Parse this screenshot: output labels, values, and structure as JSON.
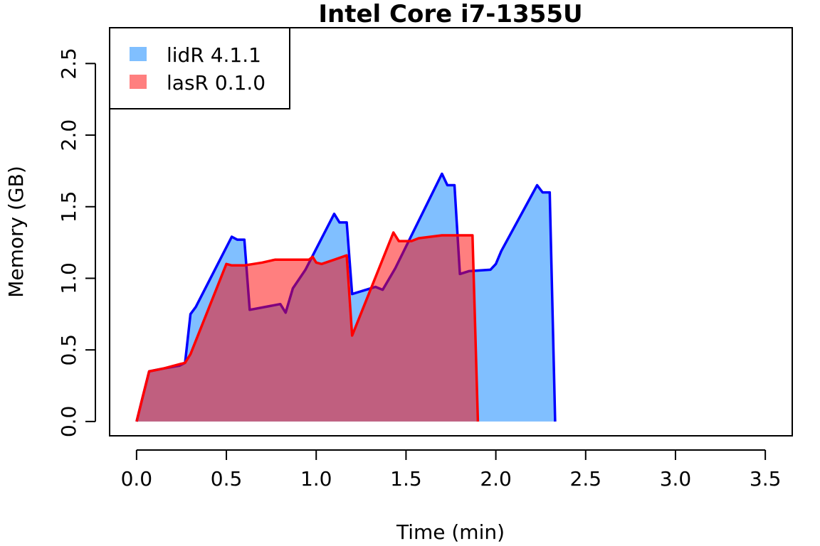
{
  "chart_data": {
    "type": "area",
    "title": "Intel Core i7-1355U",
    "xlabel": "Time (min)",
    "ylabel": "Memory (GB)",
    "xlim": [
      -0.15,
      3.65
    ],
    "ylim": [
      -0.1,
      2.75
    ],
    "xticks": [
      0.0,
      0.5,
      1.0,
      1.5,
      2.0,
      2.5,
      3.0,
      3.5
    ],
    "xtick_labels": [
      "0.0",
      "0.5",
      "1.0",
      "1.5",
      "2.0",
      "2.5",
      "3.0",
      "3.5"
    ],
    "yticks": [
      0.0,
      0.5,
      1.0,
      1.5,
      2.0,
      2.5
    ],
    "ytick_labels": [
      "0.0",
      "0.5",
      "1.0",
      "1.5",
      "2.0",
      "2.5"
    ],
    "grid": false,
    "legend_position": "top-left",
    "series": [
      {
        "name": "lidR 4.1.1",
        "line_color": "#0000ff",
        "fill_color": "#80bfff",
        "fill_opacity": 1,
        "points": [
          [
            0.0,
            0.0
          ],
          [
            0.03,
            0.15
          ],
          [
            0.07,
            0.35
          ],
          [
            0.15,
            0.37
          ],
          [
            0.24,
            0.39
          ],
          [
            0.27,
            0.41
          ],
          [
            0.3,
            0.75
          ],
          [
            0.33,
            0.8
          ],
          [
            0.53,
            1.29
          ],
          [
            0.56,
            1.27
          ],
          [
            0.6,
            1.27
          ],
          [
            0.63,
            0.78
          ],
          [
            0.8,
            0.82
          ],
          [
            0.83,
            0.76
          ],
          [
            0.87,
            0.93
          ],
          [
            0.94,
            1.06
          ],
          [
            1.1,
            1.45
          ],
          [
            1.13,
            1.39
          ],
          [
            1.17,
            1.39
          ],
          [
            1.2,
            0.89
          ],
          [
            1.33,
            0.94
          ],
          [
            1.37,
            0.92
          ],
          [
            1.44,
            1.07
          ],
          [
            1.7,
            1.73
          ],
          [
            1.73,
            1.65
          ],
          [
            1.77,
            1.65
          ],
          [
            1.8,
            1.03
          ],
          [
            1.85,
            1.05
          ],
          [
            1.97,
            1.06
          ],
          [
            2.0,
            1.1
          ],
          [
            2.03,
            1.19
          ],
          [
            2.23,
            1.65
          ],
          [
            2.26,
            1.6
          ],
          [
            2.3,
            1.6
          ],
          [
            2.33,
            0.0
          ]
        ]
      },
      {
        "name": "lasR 0.1.0",
        "line_color": "#ff0000",
        "fill_color": "#ff0000",
        "fill_opacity": 0.5,
        "points": [
          [
            0.0,
            0.0
          ],
          [
            0.03,
            0.15
          ],
          [
            0.07,
            0.35
          ],
          [
            0.15,
            0.37
          ],
          [
            0.27,
            0.41
          ],
          [
            0.3,
            0.47
          ],
          [
            0.5,
            1.1
          ],
          [
            0.53,
            1.09
          ],
          [
            0.6,
            1.09
          ],
          [
            0.7,
            1.11
          ],
          [
            0.77,
            1.13
          ],
          [
            0.9,
            1.13
          ],
          [
            0.96,
            1.13
          ],
          [
            0.98,
            1.15
          ],
          [
            1.0,
            1.11
          ],
          [
            1.03,
            1.1
          ],
          [
            1.1,
            1.13
          ],
          [
            1.17,
            1.16
          ],
          [
            1.2,
            0.6
          ],
          [
            1.43,
            1.32
          ],
          [
            1.46,
            1.26
          ],
          [
            1.53,
            1.26
          ],
          [
            1.57,
            1.28
          ],
          [
            1.7,
            1.3
          ],
          [
            1.87,
            1.3
          ],
          [
            1.9,
            0.0
          ]
        ]
      }
    ]
  }
}
